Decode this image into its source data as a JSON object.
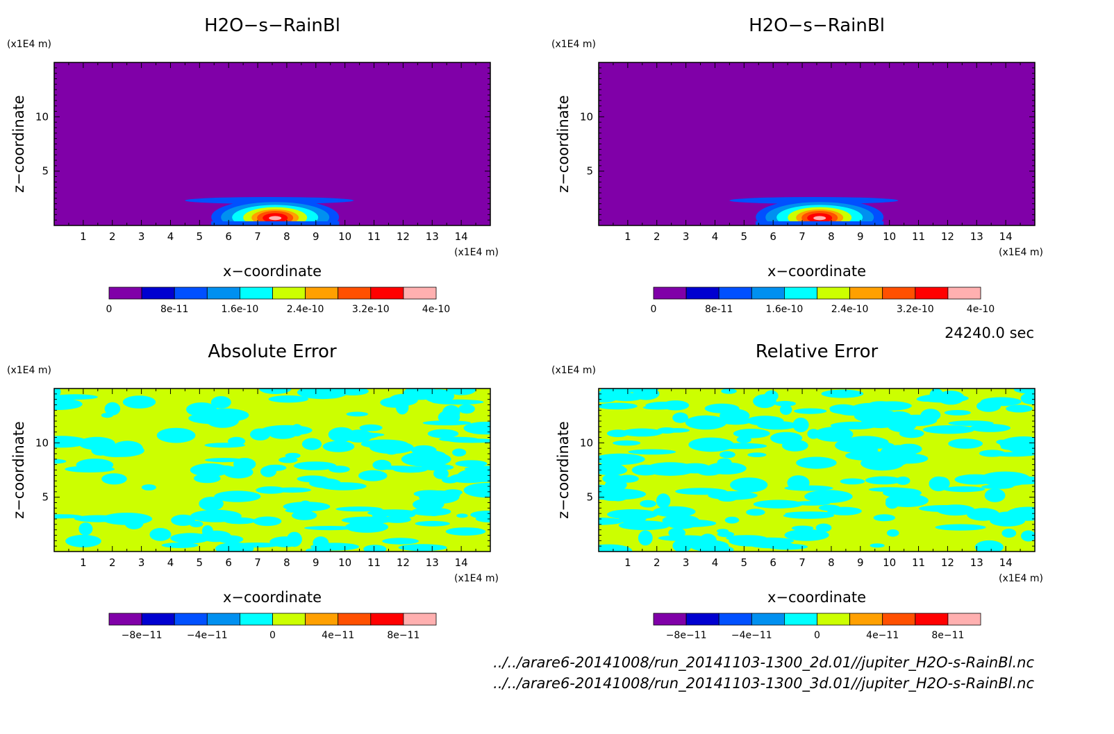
{
  "colors": {
    "background": "#8000a8",
    "field": "#ccff00",
    "anomaly": "#00ffff",
    "colorbar": [
      "#8000a8",
      "#0000d0",
      "#0050ff",
      "#0090f0",
      "#00ffff",
      "#ccff00",
      "#ffa000",
      "#ff5000",
      "#ff0000",
      "#ffb0b0"
    ]
  },
  "common": {
    "xlabel": "x−coordinate",
    "ylabel": "z−coordinate",
    "x_unit": "(x1E4 m)",
    "y_unit": "(x1E4 m)",
    "x_ticks": [
      "1",
      "2",
      "3",
      "4",
      "5",
      "6",
      "7",
      "8",
      "9",
      "10",
      "11",
      "12",
      "13",
      "14"
    ],
    "y_ticks": [
      "5",
      "10"
    ]
  },
  "time_label": "24240.0 sec",
  "files": [
    "../../arare6-20141008/run_20141103-1300_2d.01//jupiter_H2O-s-RainBl.nc",
    "../../arare6-20141008/run_20141103-1300_3d.01//jupiter_H2O-s-RainBl.nc"
  ],
  "chart_data": [
    {
      "type": "heatmap",
      "title": "H2O−s−RainBl",
      "xlim": [
        0,
        15
      ],
      "ylim": [
        0,
        15
      ],
      "colorbar_labels": [
        "0",
        "8e-11",
        "1.6e-10",
        "2.4e-10",
        "3.2e-10",
        "4e-10"
      ],
      "colorbar_levels": [
        0,
        4e-11,
        8e-11,
        1.2e-10,
        1.6e-10,
        2e-10,
        2.4e-10,
        2.8e-10,
        3.2e-10,
        3.6e-10,
        4e-10
      ]
    },
    {
      "type": "heatmap",
      "title": "H2O−s−RainBl",
      "xlim": [
        0,
        15
      ],
      "ylim": [
        0,
        15
      ],
      "colorbar_labels": [
        "0",
        "8e-11",
        "1.6e-10",
        "2.4e-10",
        "3.2e-10",
        "4e-10"
      ],
      "colorbar_levels": [
        0,
        4e-11,
        8e-11,
        1.2e-10,
        1.6e-10,
        2e-10,
        2.4e-10,
        2.8e-10,
        3.2e-10,
        3.6e-10,
        4e-10
      ]
    },
    {
      "type": "heatmap",
      "title": "Absolute Error",
      "xlim": [
        0,
        15
      ],
      "ylim": [
        0,
        15
      ],
      "colorbar_labels": [
        "−8e−11",
        "−4e−11",
        "0",
        "4e−11",
        "8e−11"
      ],
      "colorbar_levels": [
        -1e-10,
        -8e-11,
        -6e-11,
        -4e-11,
        -2e-11,
        0,
        2e-11,
        4e-11,
        6e-11,
        8e-11,
        1e-10
      ]
    },
    {
      "type": "heatmap",
      "title": "Relative Error",
      "xlim": [
        0,
        15
      ],
      "ylim": [
        0,
        15
      ],
      "colorbar_labels": [
        "−8e−11",
        "−4e−11",
        "0",
        "4e−11",
        "8e−11"
      ],
      "colorbar_levels": [
        -1e-10,
        -8e-11,
        -6e-11,
        -4e-11,
        -2e-11,
        0,
        2e-11,
        4e-11,
        6e-11,
        8e-11,
        1e-10
      ]
    }
  ]
}
